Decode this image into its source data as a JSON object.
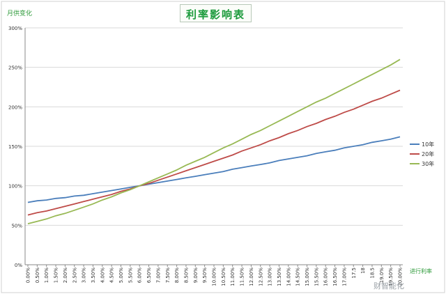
{
  "chart_data": {
    "type": "line",
    "title": "利率影响表",
    "ylabel": "月供变化",
    "xlabel": "进行利率",
    "ylim": [
      0,
      3
    ],
    "yticks": [
      0,
      0.5,
      1,
      1.5,
      2,
      2.5,
      3
    ],
    "ytick_labels": [
      "0%",
      "50%",
      "100%",
      "150%",
      "200%",
      "250%",
      "300%"
    ],
    "x": [
      0.0,
      0.5,
      1.0,
      1.5,
      2.0,
      2.5,
      3.0,
      3.5,
      4.0,
      4.5,
      5.0,
      5.5,
      6.0,
      6.5,
      7.0,
      7.5,
      8.0,
      8.5,
      9.0,
      9.5,
      10.0,
      10.5,
      11.0,
      11.5,
      12.0,
      12.5,
      13.0,
      13.5,
      14.0,
      14.5,
      15.0,
      15.5,
      16.0,
      16.5,
      17.0,
      17.5,
      18.0,
      18.5,
      19.0,
      19.5,
      20.0
    ],
    "x_tick_labels": [
      "0.00%",
      "0.50%",
      "1.00%",
      "1.50%",
      "2.00%",
      "2.50%",
      "3.00%",
      "3.50%",
      "4.00%",
      "4.50%",
      "5.00%",
      "5.50%",
      "6.00%",
      "6.50%",
      "7.00%",
      "7.50%",
      "8.00%",
      "8.50%",
      "9.00%",
      "9.50%",
      "10.00%",
      "10.50%",
      "11.00%",
      "11.50%",
      "12.00%",
      "12.50%",
      "13.00%",
      "13.50%",
      "14.00%",
      "14.50%",
      "15.00%",
      "15.50%",
      "16.00%",
      "16.50%",
      "17.00%",
      "17.5",
      "18",
      "18.5",
      "19.0%",
      "19.50%",
      "20.00%"
    ],
    "series": [
      {
        "name": "10年",
        "color": "#4a7ebb",
        "values": [
          0.79,
          0.81,
          0.82,
          0.84,
          0.85,
          0.87,
          0.88,
          0.9,
          0.92,
          0.94,
          0.96,
          0.98,
          1.0,
          1.02,
          1.04,
          1.06,
          1.08,
          1.1,
          1.12,
          1.14,
          1.16,
          1.18,
          1.21,
          1.23,
          1.25,
          1.27,
          1.29,
          1.32,
          1.34,
          1.36,
          1.38,
          1.41,
          1.43,
          1.45,
          1.48,
          1.5,
          1.52,
          1.55,
          1.57,
          1.59,
          1.62
        ]
      },
      {
        "name": "20年",
        "color": "#be4b48",
        "values": [
          0.63,
          0.66,
          0.68,
          0.71,
          0.74,
          0.77,
          0.8,
          0.83,
          0.86,
          0.89,
          0.93,
          0.96,
          1.0,
          1.03,
          1.07,
          1.11,
          1.15,
          1.19,
          1.23,
          1.27,
          1.31,
          1.35,
          1.39,
          1.44,
          1.48,
          1.52,
          1.57,
          1.61,
          1.66,
          1.7,
          1.75,
          1.79,
          1.84,
          1.88,
          1.93,
          1.97,
          2.02,
          2.07,
          2.11,
          2.16,
          2.21
        ]
      },
      {
        "name": "30年",
        "color": "#98b954",
        "values": [
          0.52,
          0.55,
          0.58,
          0.62,
          0.65,
          0.69,
          0.73,
          0.77,
          0.82,
          0.86,
          0.91,
          0.95,
          1.0,
          1.05,
          1.1,
          1.15,
          1.2,
          1.26,
          1.31,
          1.36,
          1.42,
          1.48,
          1.53,
          1.59,
          1.65,
          1.7,
          1.76,
          1.82,
          1.88,
          1.94,
          2.0,
          2.06,
          2.11,
          2.17,
          2.23,
          2.29,
          2.35,
          2.41,
          2.47,
          2.53,
          2.6
        ]
      }
    ],
    "grid": true,
    "legend_position": "right"
  },
  "watermark": "财智能化"
}
